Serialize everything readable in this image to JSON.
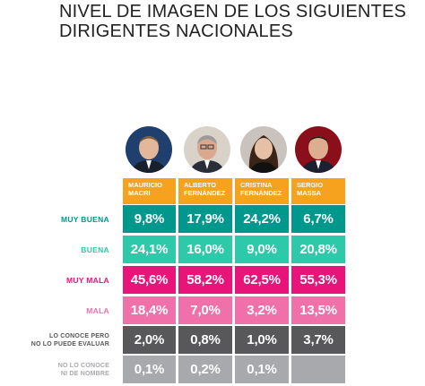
{
  "title_line1": "NIVEL DE IMAGEN DE LOS SIGUIENTES",
  "title_line2": "DIRIGENTES NACIONALES",
  "columns": [
    {
      "line1": "MAURICIO",
      "line2": "MACRI"
    },
    {
      "line1": "ALBERTO",
      "line2": "FERNÁNDEZ"
    },
    {
      "line1": "CRISTINA",
      "line2": "FERNÁNDEZ"
    },
    {
      "line1": "SERGIO",
      "line2": "MASSA"
    }
  ],
  "rows": [
    {
      "label1": "MUY BUENA",
      "label2": "",
      "color": "#00978c",
      "label_color": "#00978c",
      "cells": [
        "9,8%",
        "17,9%",
        "24,2%",
        "6,7%"
      ]
    },
    {
      "label1": "BUENA",
      "label2": "",
      "color": "#2ec9a8",
      "label_color": "#2ec9a8",
      "cells": [
        "24,1%",
        "16,0%",
        "9,0%",
        "20,8%"
      ]
    },
    {
      "label1": "MUY MALA",
      "label2": "",
      "color": "#e8147a",
      "label_color": "#e8147a",
      "cells": [
        "45,6%",
        "58,2%",
        "62,5%",
        "55,3%"
      ]
    },
    {
      "label1": "MALA",
      "label2": "",
      "color": "#f071aa",
      "label_color": "#f071aa",
      "cells": [
        "18,4%",
        "7,0%",
        "3,2%",
        "13,5%"
      ]
    },
    {
      "label1": "LO CONOCE PERO",
      "label2": "NO LO PUEDE EVALUAR",
      "color": "#58585a",
      "label_color": "#58585a",
      "cells": [
        "2,0%",
        "0,8%",
        "1,0%",
        "3,7%"
      ]
    },
    {
      "label1": "NO LO CONOCE",
      "label2": "NI DE NOMBRE",
      "color": "#a7a9ac",
      "label_color": "#a7a9ac",
      "cells": [
        "0,1%",
        "0,2%",
        "0,1%",
        ""
      ]
    }
  ],
  "header_color": "#f6a21e",
  "chart_data": {
    "type": "table",
    "title": "NIVEL DE IMAGEN DE LOS SIGUIENTES DIRIGENTES NACIONALES",
    "categories": [
      "MAURICIO MACRI",
      "ALBERTO FERNÁNDEZ",
      "CRISTINA FERNÁNDEZ",
      "SERGIO MASSA"
    ],
    "series": [
      {
        "name": "MUY BUENA",
        "values": [
          9.8,
          17.9,
          24.2,
          6.7
        ]
      },
      {
        "name": "BUENA",
        "values": [
          24.1,
          16.0,
          9.0,
          20.8
        ]
      },
      {
        "name": "MUY MALA",
        "values": [
          45.6,
          58.2,
          62.5,
          55.3
        ]
      },
      {
        "name": "MALA",
        "values": [
          18.4,
          7.0,
          3.2,
          13.5
        ]
      },
      {
        "name": "LO CONOCE PERO NO LO PUEDE EVALUAR",
        "values": [
          2.0,
          0.8,
          1.0,
          3.7
        ]
      },
      {
        "name": "NO LO CONOCE NI DE NOMBRE",
        "values": [
          0.1,
          0.2,
          0.1,
          null
        ]
      }
    ]
  }
}
